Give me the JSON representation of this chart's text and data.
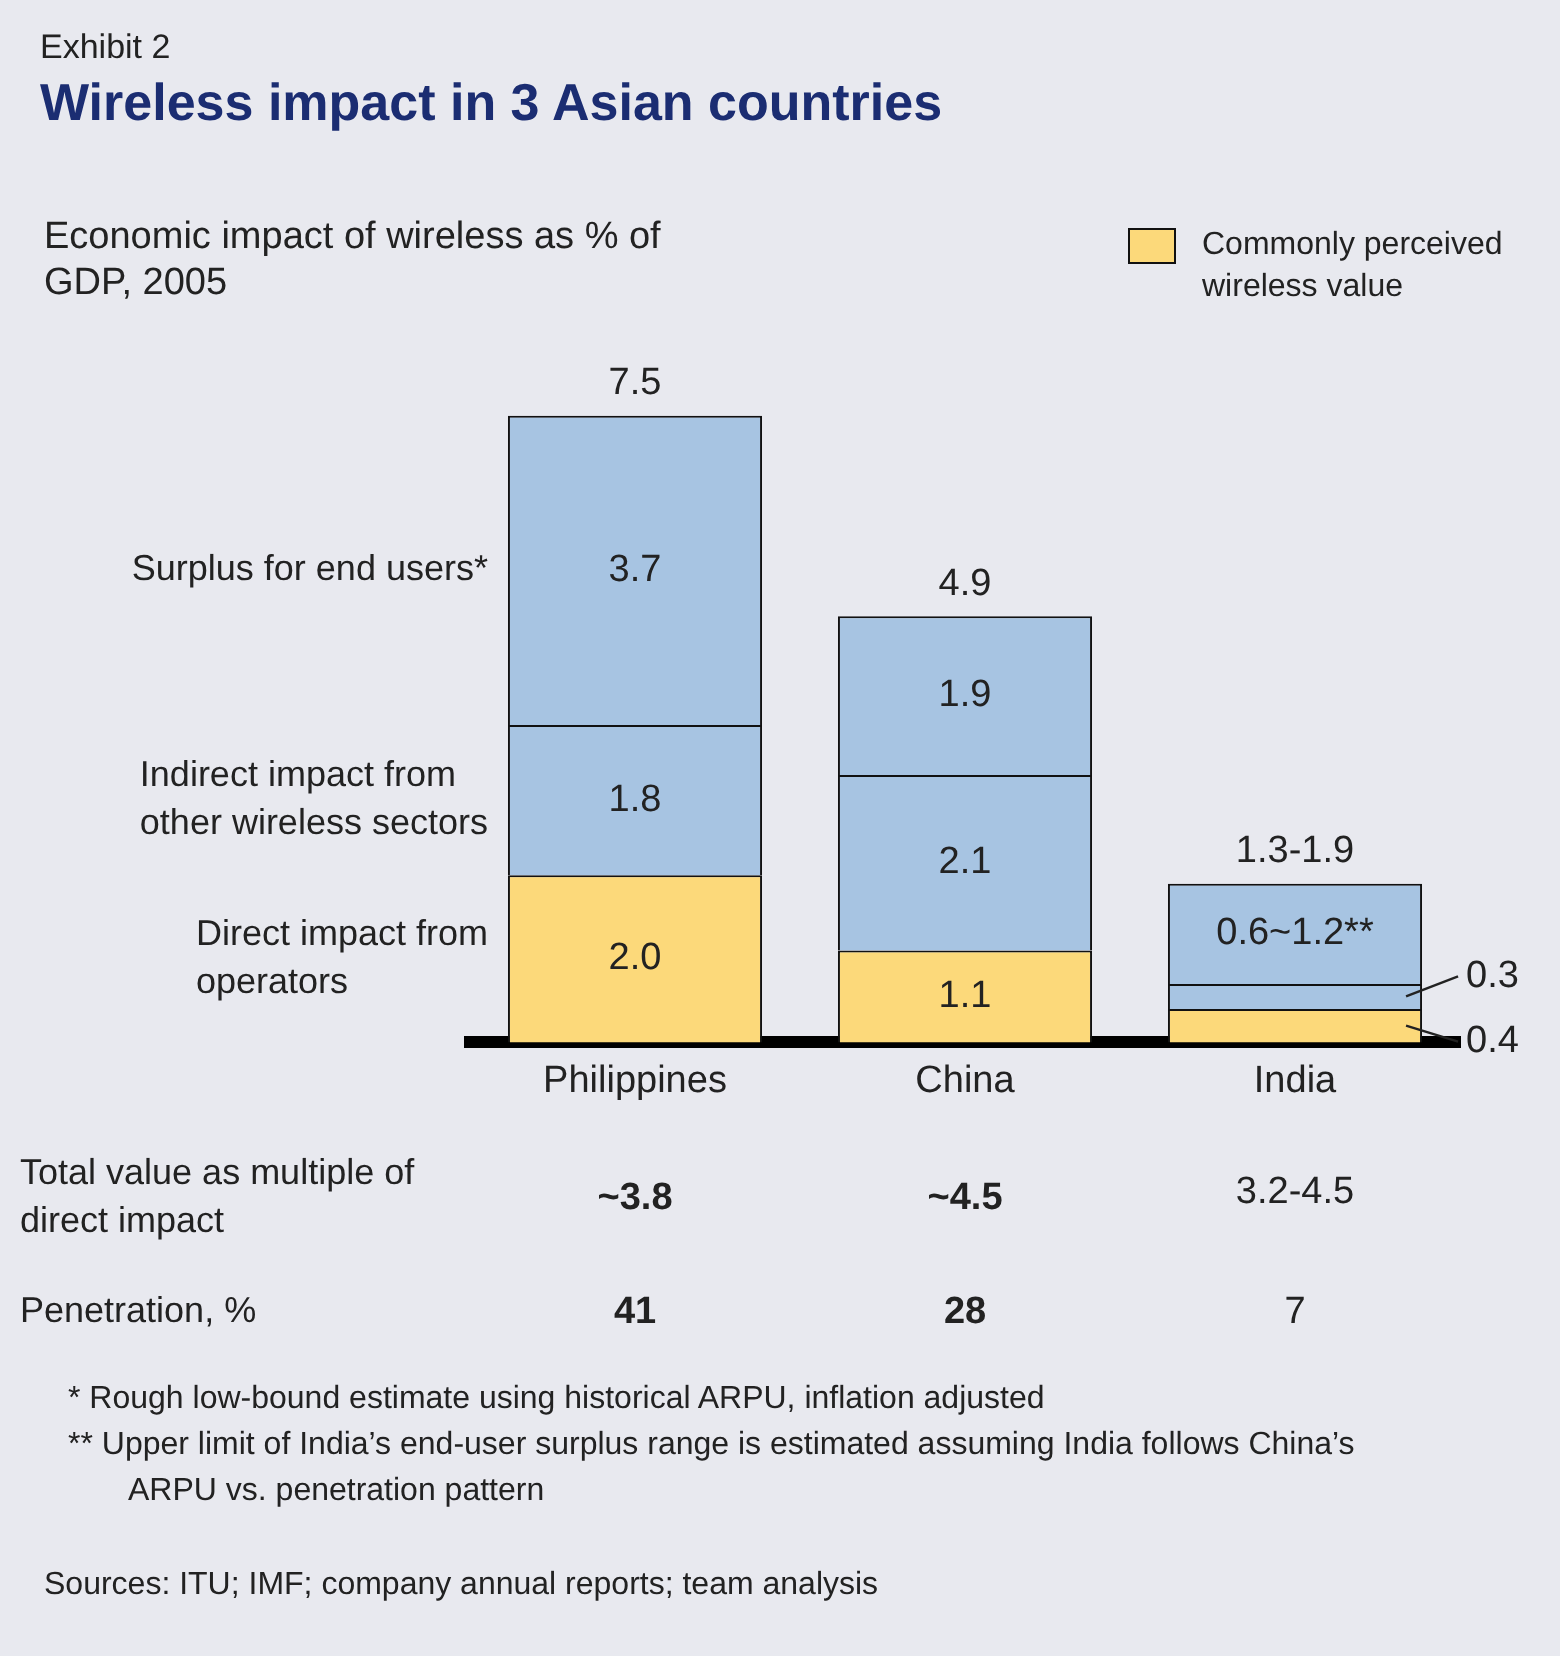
{
  "chart_data": {
    "type": "bar",
    "title": "Wireless impact in 3 Asian countries",
    "ylabel": "Economic impact of wireless as % of GDP, 2005",
    "stacked": true,
    "categories": [
      "Philippines",
      "China",
      "India"
    ],
    "series": [
      {
        "name": "Direct impact from operators",
        "color": "#fcd97a",
        "values": [
          2.0,
          1.1,
          0.4
        ],
        "value_labels": [
          "2.0",
          "1.1",
          "0.4"
        ]
      },
      {
        "name": "Indirect impact from other wireless sectors",
        "color": "#a7c4e2",
        "values": [
          1.8,
          2.1,
          0.3
        ],
        "value_labels": [
          "1.8",
          "2.1",
          "0.3"
        ]
      },
      {
        "name": "Surplus for end users*",
        "color": "#a7c4e2",
        "values": [
          3.7,
          1.9,
          1.2
        ],
        "value_labels": [
          "3.7",
          "1.9",
          "0.6~1.2**"
        ]
      }
    ],
    "totals": [
      "7.5",
      "4.9",
      "1.3-1.9"
    ],
    "annotations": [
      "Exhibit 2",
      "Commonly perceived wireless value",
      "Total value as multiple of direct impact",
      "~3.8",
      "~4.5",
      "3.2-4.5",
      "Penetration, %",
      "41",
      "28",
      "7",
      "* Rough low-bound estimate using historical ARPU, inflation adjusted",
      "** Upper limit of India’s end-user surplus range is estimated assuming India follows China’s ARPU vs. penetration pattern",
      "Sources: ITU; IMF; company annual reports; team analysis"
    ]
  }
}
